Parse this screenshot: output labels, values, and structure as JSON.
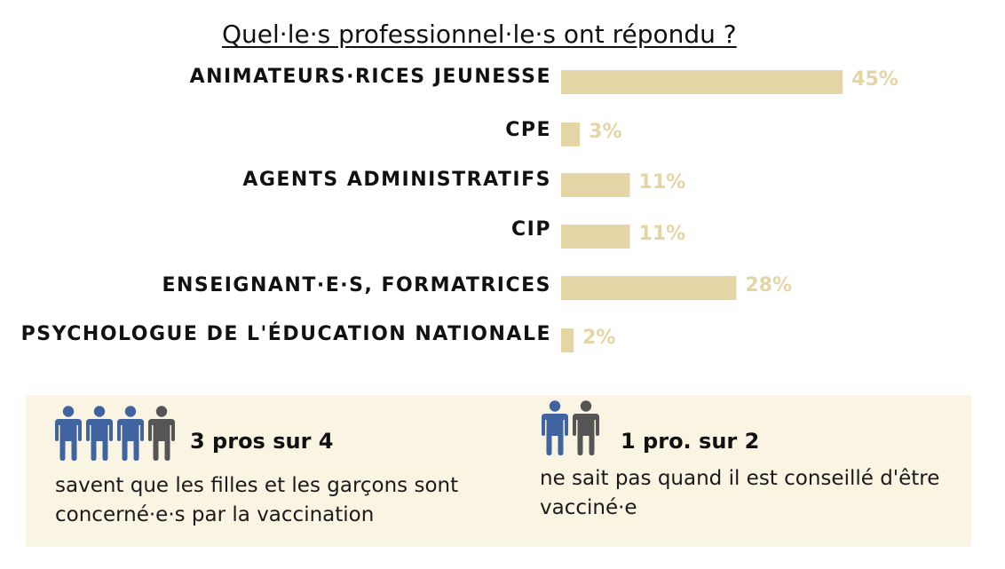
{
  "colors": {
    "bar": "#e3d5a6",
    "bar_label": "#e3d5a6",
    "panel_bg": "#faf4e2",
    "person_blue": "#3f64a0",
    "person_gray": "#555555"
  },
  "chart_data": {
    "type": "bar",
    "orientation": "horizontal",
    "title": "Quel·le·s professionnel·le·s ont répondu ?",
    "categories": [
      "Animateurs·rices jeunesse",
      "CPE",
      "Agents administratifs",
      "CIP",
      "Enseignant·e·s, formatrices",
      "Psychologue de l'éducation nationale"
    ],
    "values": [
      45,
      3,
      11,
      11,
      28,
      2
    ],
    "value_labels": [
      "45%",
      "3%",
      "11%",
      "11%",
      "28%",
      "2%"
    ],
    "unit": "%",
    "xlim": [
      0,
      100
    ],
    "grid": false,
    "legend": "none"
  },
  "callouts": [
    {
      "stat": "3 pros sur 4",
      "text_lines": [
        "savent que les filles et les garçons sont",
        "concerné·e·s par la vaccination"
      ],
      "icons": [
        "person-blue-icon",
        "person-blue-icon",
        "person-blue-icon",
        "person-gray-icon"
      ]
    },
    {
      "stat": "1 pro. sur 2",
      "text_lines": [
        "ne sait pas quand il est conseillé d'être",
        "vacciné·e"
      ],
      "icons": [
        "person-blue-icon",
        "person-gray-icon"
      ]
    }
  ]
}
